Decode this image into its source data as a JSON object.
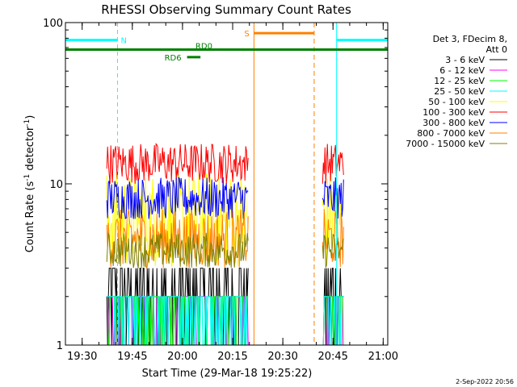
{
  "chart_data": {
    "type": "line",
    "title": "RHESSI Observing Summary Count Rates",
    "xlabel": "Start Time (29-Mar-18 19:25:22)",
    "ylabel": "Count Rate (s",
    "ylabel_sup": "-1",
    "ylabel_end": " detector",
    "ylabel_end_sup": "-1",
    "ylabel_close": ")",
    "y_scale": "log",
    "ylim": [
      1,
      100
    ],
    "xlim_minutes": [
      -0.37,
      96.0
    ],
    "y_ticks": [
      {
        "value": 1,
        "label": "1"
      },
      {
        "value": 10,
        "label": "10"
      },
      {
        "value": 100,
        "label": "100"
      }
    ],
    "x_ticks": [
      {
        "minutes": 4.63,
        "label": "19:30"
      },
      {
        "minutes": 19.63,
        "label": "19:45"
      },
      {
        "minutes": 34.63,
        "label": "20:00"
      },
      {
        "minutes": 49.63,
        "label": "20:15"
      },
      {
        "minutes": 64.63,
        "label": "20:30"
      },
      {
        "minutes": 79.63,
        "label": "20:45"
      },
      {
        "minutes": 94.63,
        "label": "21:00"
      }
    ],
    "segments": [
      {
        "start_min": 12.0,
        "end_min": 54.5
      },
      {
        "start_min": 76.5,
        "end_min": 83.0
      }
    ],
    "series": [
      {
        "name": "3 - 6 keV",
        "color": "#000000",
        "low": 1.0,
        "high": 3.0
      },
      {
        "name": "6 - 12 keV",
        "color": "#ff00ff",
        "low": 1.0,
        "high": 2.0
      },
      {
        "name": "12 - 25 keV",
        "color": "#00ff00",
        "low": 1.0,
        "high": 2.0
      },
      {
        "name": "25 - 50 keV",
        "color": "#00ffff",
        "low": 1.0,
        "high": 2.0
      },
      {
        "name": "50 - 100 keV",
        "color": "#ffff00",
        "low": 3.0,
        "high": 12.0
      },
      {
        "name": "100 - 300 keV",
        "color": "#ff0000",
        "low": 10.0,
        "high": 18.0
      },
      {
        "name": "300 - 800 keV",
        "color": "#0000ff",
        "low": 6.0,
        "high": 11.0
      },
      {
        "name": "800 - 7000 keV",
        "color": "#ff8000",
        "low": 3.0,
        "high": 7.0
      },
      {
        "name": "7000 - 15000 keV",
        "color": "#808000",
        "low": 3.0,
        "high": 5.0
      }
    ],
    "legend": {
      "title_line1": "Det 3, FDecim 8,",
      "title_line2": "Att 0",
      "placement": "right"
    },
    "annotations": {
      "night_label": "N",
      "saa_label": "S",
      "rd0_label": "RD0",
      "rd6_label": "RD6",
      "night_periods": [
        {
          "start_min": -0.37,
          "end_min": 15.2
        },
        {
          "start_min": 80.7,
          "end_min": 96.0
        }
      ],
      "saa_period": {
        "start_min": 56.0,
        "end_min": 74.0
      },
      "rd0_level": 68,
      "rd0_range": [
        -0.37,
        96.0
      ],
      "rd6_level": 61,
      "rd6_range": [
        36.0,
        40.0
      ],
      "colors": {
        "night": "#00ffff",
        "saa": "#ff8000",
        "rd": "#008000"
      }
    }
  },
  "footer": {
    "date": "2-Sep-2022 20:56"
  }
}
